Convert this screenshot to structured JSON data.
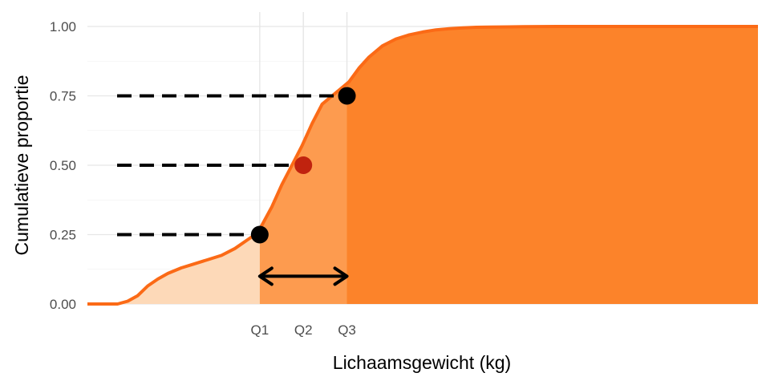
{
  "chart_data": {
    "type": "area",
    "title": "",
    "xlabel": "Lichaamsgewicht (kg)",
    "ylabel": "Cumulatieve proportie",
    "ylim": [
      0,
      1
    ],
    "y_ticks": [
      "0.00",
      "0.25",
      "0.50",
      "0.75",
      "1.00"
    ],
    "x_ticks": [
      "Q1",
      "Q2",
      "Q3"
    ],
    "grid": "on",
    "x_note": "Horizontal axis has no numeric labels; x values below are relative positions (0 = axis start, 1 = axis end).",
    "x_range": [
      0,
      1
    ],
    "series": [
      {
        "x": [
          0,
          0.045,
          0.06,
          0.075,
          0.09,
          0.105,
          0.12,
          0.14,
          0.16,
          0.18,
          0.2,
          0.22,
          0.238,
          0.25,
          0.257,
          0.275,
          0.29,
          0.305,
          0.32,
          0.335,
          0.35,
          0.365,
          0.375,
          0.39,
          0.405,
          0.42,
          0.44,
          0.46,
          0.48,
          0.5,
          0.52,
          0.54,
          0.56,
          0.58,
          0.6,
          0.65,
          0.7,
          0.8,
          0.9,
          1.0
        ],
        "values": [
          0,
          0,
          0.01,
          0.03,
          0.065,
          0.09,
          0.11,
          0.13,
          0.145,
          0.16,
          0.175,
          0.2,
          0.23,
          0.25,
          0.27,
          0.35,
          0.43,
          0.5,
          0.57,
          0.65,
          0.72,
          0.75,
          0.77,
          0.8,
          0.85,
          0.89,
          0.93,
          0.955,
          0.97,
          0.98,
          0.988,
          0.992,
          0.995,
          0.997,
          0.998,
          0.999,
          1.0,
          1.0,
          1.0,
          1.0
        ]
      }
    ],
    "quartiles": [
      {
        "label": "Q1",
        "x": 0.257,
        "y": 0.25,
        "color": "#000000"
      },
      {
        "label": "Q2",
        "x": 0.322,
        "y": 0.5,
        "color": "#c0230f"
      },
      {
        "label": "Q3",
        "x": 0.387,
        "y": 0.75,
        "color": "#000000"
      }
    ],
    "annotations": [
      "horizontal dashed guides from the y axis to each quartile point",
      "double-headed arrow spanning Q1 to Q3 (interquartile range)"
    ],
    "colors": {
      "line": "#fb6a16",
      "fill_low": "#fdd9b8",
      "fill_iqr": "#fd9b4f",
      "fill_high": "#fc832a",
      "q2_point": "#c0230f"
    }
  }
}
